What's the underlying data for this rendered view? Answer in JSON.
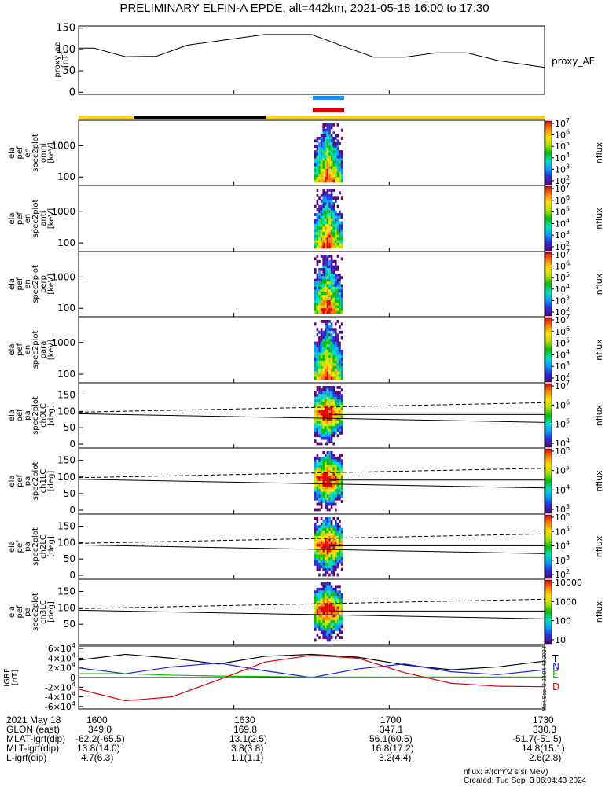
{
  "title": "PRELIMINARY ELFIN-A EPDE, alt=442km, 2021-05-18 16:00 to 17:30",
  "colors": {
    "sci_zone_blue": "#1e90ff",
    "sci_zone_red": "#e00000",
    "sunlight_bar": "#ffd400",
    "shadow_bar": "#000000",
    "fgm_N": "#1a1aff",
    "fgm_E": "#00c000",
    "fgm_D": "#e00000",
    "fgm_T": "#000000"
  },
  "chart_data": [
    {
      "type": "line",
      "name": "proxy_ae",
      "ylabel_lines": [
        "proxy_ae",
        "[nT]"
      ],
      "legend": "proxy_AE",
      "ylim": [
        -5,
        155
      ],
      "yticks": [
        "0",
        "50",
        "100",
        "150"
      ],
      "x_minutes": [
        0,
        3,
        9,
        15,
        21,
        27,
        36,
        45,
        51,
        57,
        63,
        69,
        75,
        81,
        90
      ],
      "values": [
        103,
        103,
        83,
        84,
        110,
        120,
        135,
        135,
        108,
        82,
        82,
        92,
        92,
        74,
        58
      ]
    },
    {
      "type": "heatmap",
      "name": "omni",
      "ylabel_lines": [
        "ela",
        "pef",
        "en",
        "spec2plot",
        "omni",
        "[keV]"
      ],
      "yticks": [
        "100",
        "1000"
      ],
      "colorbar": {
        "ticks": [
          "10^2",
          "10^3",
          "10^4",
          "10^5",
          "10^6",
          "10^7"
        ],
        "label": "nflux"
      }
    },
    {
      "type": "heatmap",
      "name": "anti",
      "ylabel_lines": [
        "ela",
        "pef",
        "en",
        "spec2plot",
        "anti",
        "[keV]"
      ],
      "yticks": [
        "100",
        "1000"
      ],
      "colorbar": {
        "ticks": [
          "10^2",
          "10^3",
          "10^4",
          "10^5",
          "10^6",
          "10^7"
        ],
        "label": "nflux"
      }
    },
    {
      "type": "heatmap",
      "name": "perp",
      "ylabel_lines": [
        "ela",
        "pef",
        "en",
        "spec2plot",
        "perp",
        "[keV]"
      ],
      "yticks": [
        "100",
        "1000"
      ],
      "colorbar": {
        "ticks": [
          "10^2",
          "10^3",
          "10^4",
          "10^5",
          "10^6",
          "10^7"
        ],
        "label": "nflux"
      }
    },
    {
      "type": "heatmap",
      "name": "para",
      "ylabel_lines": [
        "ela",
        "pef",
        "en",
        "spec2plot",
        "para",
        "[keV]"
      ],
      "yticks": [
        "100",
        "1000"
      ],
      "colorbar": {
        "ticks": [
          "10^2",
          "10^3",
          "10^4",
          "10^5",
          "10^6",
          "10^7"
        ],
        "label": "nflux"
      }
    },
    {
      "type": "heatmap",
      "name": "ch0LC",
      "ylabel_lines": [
        "ela",
        "pef",
        "pa",
        "spec2plot",
        "ch0LC",
        "[deg]"
      ],
      "yticks": [
        "0",
        "50",
        "100",
        "150"
      ],
      "colorbar": {
        "ticks": [
          "10^4",
          "10^5",
          "10^6",
          "10^7"
        ],
        "label": "nflux"
      }
    },
    {
      "type": "heatmap",
      "name": "ch1LC",
      "ylabel_lines": [
        "ela",
        "pef",
        "pa",
        "spec2plot",
        "ch1LC",
        "[deg]"
      ],
      "yticks": [
        "0",
        "50",
        "100",
        "150"
      ],
      "colorbar": {
        "ticks": [
          "10^3",
          "10^4",
          "10^5",
          "10^6"
        ],
        "label": "nflux"
      }
    },
    {
      "type": "heatmap",
      "name": "ch2LC",
      "ylabel_lines": [
        "ela",
        "pef",
        "pa",
        "spec2plot",
        "ch2LC",
        "[deg]"
      ],
      "yticks": [
        "0",
        "50",
        "100",
        "150"
      ],
      "colorbar": {
        "ticks": [
          "10^2",
          "10^3",
          "10^4",
          "10^5",
          "10^6"
        ],
        "label": "nflux"
      }
    },
    {
      "type": "heatmap",
      "name": "ch3LC",
      "ylabel_lines": [
        "ela",
        "pef",
        "pa",
        "spec2plot",
        "ch3LC",
        "[deg]"
      ],
      "yticks": [
        "50",
        "100",
        "150"
      ],
      "colorbar": {
        "ticks": [
          "10",
          "100",
          "1000",
          "10000"
        ],
        "label": "nflux"
      }
    },
    {
      "type": "line",
      "name": "IGRF",
      "ylabel_lines": [
        "IGRF",
        "[nT]"
      ],
      "ylim": [
        -65000,
        65000
      ],
      "yticks": [
        "-6×10^4",
        "-4×10^4",
        "-2×10^4",
        "0",
        "2×10^4",
        "4×10^4",
        "6×10^4"
      ],
      "legend": [
        "T",
        "N",
        "E",
        "D"
      ],
      "x_minutes": [
        0,
        9,
        18,
        27,
        36,
        45,
        54,
        63,
        72,
        81,
        90
      ],
      "series": [
        {
          "name": "T",
          "values": [
            36000,
            48000,
            40000,
            28000,
            44000,
            48000,
            42000,
            26000,
            16000,
            22000,
            34000
          ]
        },
        {
          "name": "N",
          "values": [
            20000,
            8000,
            22000,
            30000,
            14000,
            0,
            18000,
            28000,
            12000,
            6000,
            16000
          ]
        },
        {
          "name": "E",
          "values": [
            8000,
            8000,
            5000,
            3000,
            2000,
            1000,
            1000,
            1000,
            1000,
            1000,
            1000
          ]
        },
        {
          "name": "D",
          "values": [
            -24000,
            -48000,
            -40000,
            -5000,
            32000,
            46000,
            40000,
            10000,
            -12000,
            -18000,
            -19000
          ]
        }
      ]
    }
  ],
  "orbit_table": {
    "labels": [
      "2021 May 18",
      "GLON (east)",
      "MLAT-igrf(dip)",
      "MLT-igrf(dip)",
      "L-igrf(dip)"
    ],
    "columns": [
      {
        "time": "1600",
        "values": [
          "349.0",
          "-62.2(-65.5)",
          "13.8(14.0)",
          "4.7(6.3)"
        ]
      },
      {
        "time": "1630",
        "values": [
          "169.8",
          "13.1(2.5)",
          "3.8(3.8)",
          "1.1(1.1)"
        ]
      },
      {
        "time": "1700",
        "values": [
          "347.1",
          "56.1(60.5)",
          "16.8(17.2)",
          "3.2(4.4)"
        ]
      },
      {
        "time": "1730",
        "values": [
          "330.3",
          "-51.7(-51.5)",
          "14.8(15.1)",
          "2.6(2.8)"
        ]
      }
    ]
  },
  "footer": {
    "units": "nflux: #/(cm^2 s sr MeV)",
    "created": "Created: Tue Sep  3 06:04:43 2024",
    "side_stamp": "Mon Sep  2 23:04:43 2024"
  }
}
